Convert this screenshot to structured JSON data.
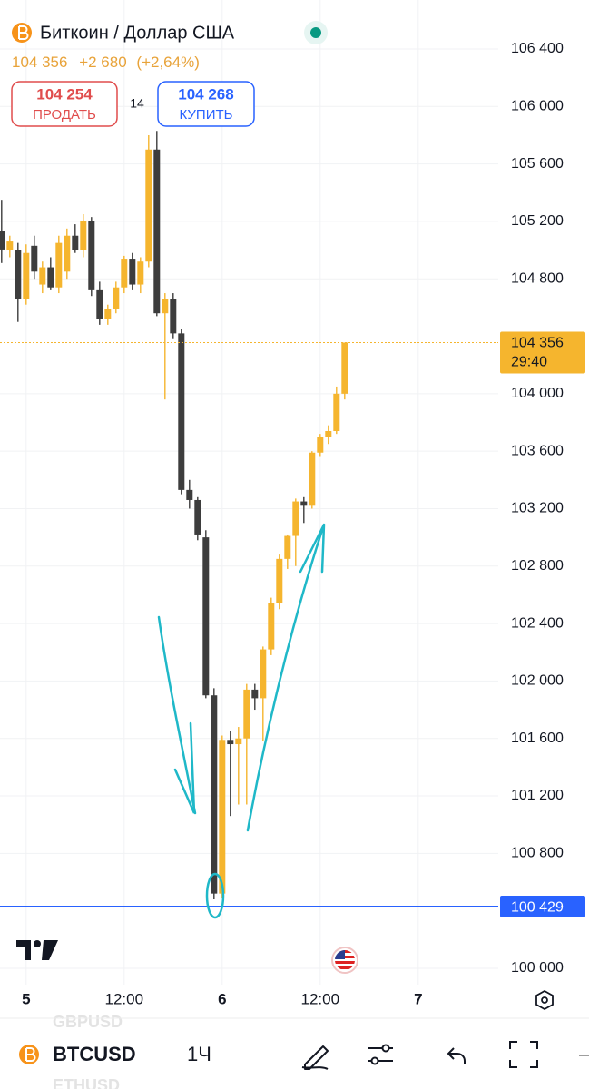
{
  "header": {
    "title": "Биткоин / Доллар США",
    "price": "104 356",
    "change": "+2 680",
    "change_percent": "(+2,64%)",
    "sell": {
      "price": "104 254",
      "label": "ПРОДАТЬ"
    },
    "spread": "14",
    "buy": {
      "price": "104 268",
      "label": "КУПИТЬ"
    }
  },
  "chart_data": {
    "type": "candlestick",
    "x": [
      -3,
      -2,
      -1,
      0,
      1,
      2,
      3,
      4,
      5,
      6,
      7,
      8,
      9,
      10,
      11,
      12,
      13,
      14,
      15,
      16,
      17,
      18,
      19,
      20,
      21,
      22,
      23,
      24,
      25,
      26,
      27,
      28,
      29,
      30,
      31,
      32,
      33,
      34,
      35,
      36,
      37,
      38,
      39
    ],
    "open": [
      105130,
      105000,
      105000,
      104660,
      105030,
      104760,
      104880,
      104740,
      104850,
      105100,
      105000,
      105200,
      104720,
      104520,
      104590,
      104740,
      104940,
      104760,
      104920,
      105700,
      104560,
      104660,
      104420,
      103330,
      103260,
      103000,
      101900,
      100520,
      101590,
      101560,
      101600,
      101940,
      101880,
      102220,
      102540,
      102850,
      103010,
      103250,
      103220,
      103590,
      103700,
      103740,
      104000
    ],
    "high": [
      105350,
      105100,
      105050,
      105040,
      105100,
      104920,
      104950,
      105100,
      105150,
      105180,
      105250,
      105230,
      104780,
      104620,
      104780,
      104960,
      104980,
      104950,
      105800,
      105830,
      104700,
      104700,
      104450,
      103400,
      103280,
      103050,
      101950,
      101620,
      101650,
      101680,
      101980,
      101980,
      102240,
      102580,
      102880,
      103020,
      103270,
      103280,
      103600,
      103720,
      103780,
      104050,
      104356
    ],
    "low": [
      104910,
      104950,
      104500,
      104620,
      104800,
      104700,
      104720,
      104700,
      104800,
      104980,
      104950,
      104680,
      104480,
      104480,
      104560,
      104700,
      104720,
      104700,
      104880,
      104540,
      103960,
      104380,
      103300,
      103200,
      102980,
      101880,
      100480,
      100490,
      101060,
      101140,
      101140,
      101800,
      101580,
      102180,
      102500,
      102780,
      102800,
      103100,
      103200,
      103560,
      103650,
      103720,
      103960
    ],
    "close": [
      105004,
      105060,
      104660,
      104980,
      104850,
      104880,
      104740,
      105050,
      105100,
      105000,
      105200,
      104720,
      104520,
      104590,
      104740,
      104940,
      104760,
      104920,
      105700,
      104560,
      104660,
      104420,
      103330,
      103260,
      103020,
      101900,
      100520,
      101590,
      101560,
      101600,
      101940,
      101880,
      102220,
      102540,
      102850,
      103010,
      103250,
      103220,
      103590,
      103700,
      103740,
      104000,
      104356
    ],
    "up_color": "#f5b52e",
    "down_color": "#3d3d3d",
    "xlim": [
      -3.2,
      57.8
    ],
    "ylim": [
      99886,
      106741
    ],
    "grid": true,
    "xticks": [
      {
        "value": 0,
        "label": "5"
      },
      {
        "value": 12,
        "label": "12:00"
      },
      {
        "value": 24,
        "label": "6"
      },
      {
        "value": 36,
        "label": "12:00"
      },
      {
        "value": 48,
        "label": "7"
      }
    ],
    "yticks": [
      {
        "value": 106400,
        "label": "106 400"
      },
      {
        "value": 106000,
        "label": "106 000"
      },
      {
        "value": 105600,
        "label": "105 600"
      },
      {
        "value": 105200,
        "label": "105 200"
      },
      {
        "value": 104800,
        "label": "104 800"
      },
      {
        "value": 104000,
        "label": "104 000"
      },
      {
        "value": 103600,
        "label": "103 600"
      },
      {
        "value": 103200,
        "label": "103 200"
      },
      {
        "value": 102800,
        "label": "102 800"
      },
      {
        "value": 102400,
        "label": "102 400"
      },
      {
        "value": 102000,
        "label": "102 000"
      },
      {
        "value": 101600,
        "label": "101 600"
      },
      {
        "value": 101200,
        "label": "101 200"
      },
      {
        "value": 100800,
        "label": "100 800"
      },
      {
        "value": 100000,
        "label": "100 000"
      }
    ],
    "price_line": {
      "value": 104356,
      "label": "104 356",
      "countdown": "29:40",
      "color": "#f5b52e"
    },
    "alert_line": {
      "value": 100429,
      "label": "100 429",
      "color": "#2962ff"
    }
  },
  "toolbar": {
    "symbol": "BTCUSD",
    "interval": "1Ч",
    "watchlist": [
      "GBPUSD",
      "ETHUSD"
    ]
  }
}
